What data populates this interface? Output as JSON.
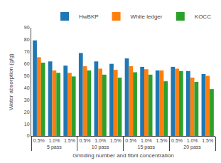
{
  "chart_data": {
    "type": "bar",
    "title": "",
    "xlabel": "Grinding number and fibril concentration",
    "ylabel": "Water absorption (g/g)",
    "categories": [
      [
        "5 pass",
        "0.5%"
      ],
      [
        "5 pass",
        "1.0%"
      ],
      [
        "5 pass",
        "1.5%"
      ],
      [
        "10 pass",
        "0.5%"
      ],
      [
        "10 pass",
        "1.0%"
      ],
      [
        "10 pass",
        "1.5%"
      ],
      [
        "15 pass",
        "0.5%"
      ],
      [
        "15 pass",
        "1.0%"
      ],
      [
        "15 pass",
        "1.5%"
      ],
      [
        "20 pass",
        "0.5%"
      ],
      [
        "20 pass",
        "1.0%"
      ],
      [
        "20 pass",
        "1.5%"
      ]
    ],
    "series": [
      {
        "name": "HwBKP",
        "values": [
          79.5,
          62.0,
          58.5,
          69.0,
          62.0,
          60.0,
          64.5,
          57.5,
          54.5,
          57.5,
          54.0,
          51.5
        ]
      },
      {
        "name": "White ledger",
        "values": [
          65.5,
          54.5,
          52.5,
          58.0,
          56.0,
          55.0,
          58.0,
          55.5,
          54.5,
          56.0,
          48.5,
          50.0
        ]
      },
      {
        "name": "KOCC",
        "values": [
          61.0,
          52.5,
          49.5,
          54.5,
          51.0,
          48.5,
          53.0,
          51.0,
          45.5,
          54.0,
          45.0,
          39.0
        ]
      }
    ],
    "ylim": [
      0,
      90
    ],
    "yticks": [
      0,
      10,
      20,
      30,
      40,
      50,
      60,
      70,
      80,
      90
    ],
    "grid": false,
    "legend": "upper right"
  }
}
